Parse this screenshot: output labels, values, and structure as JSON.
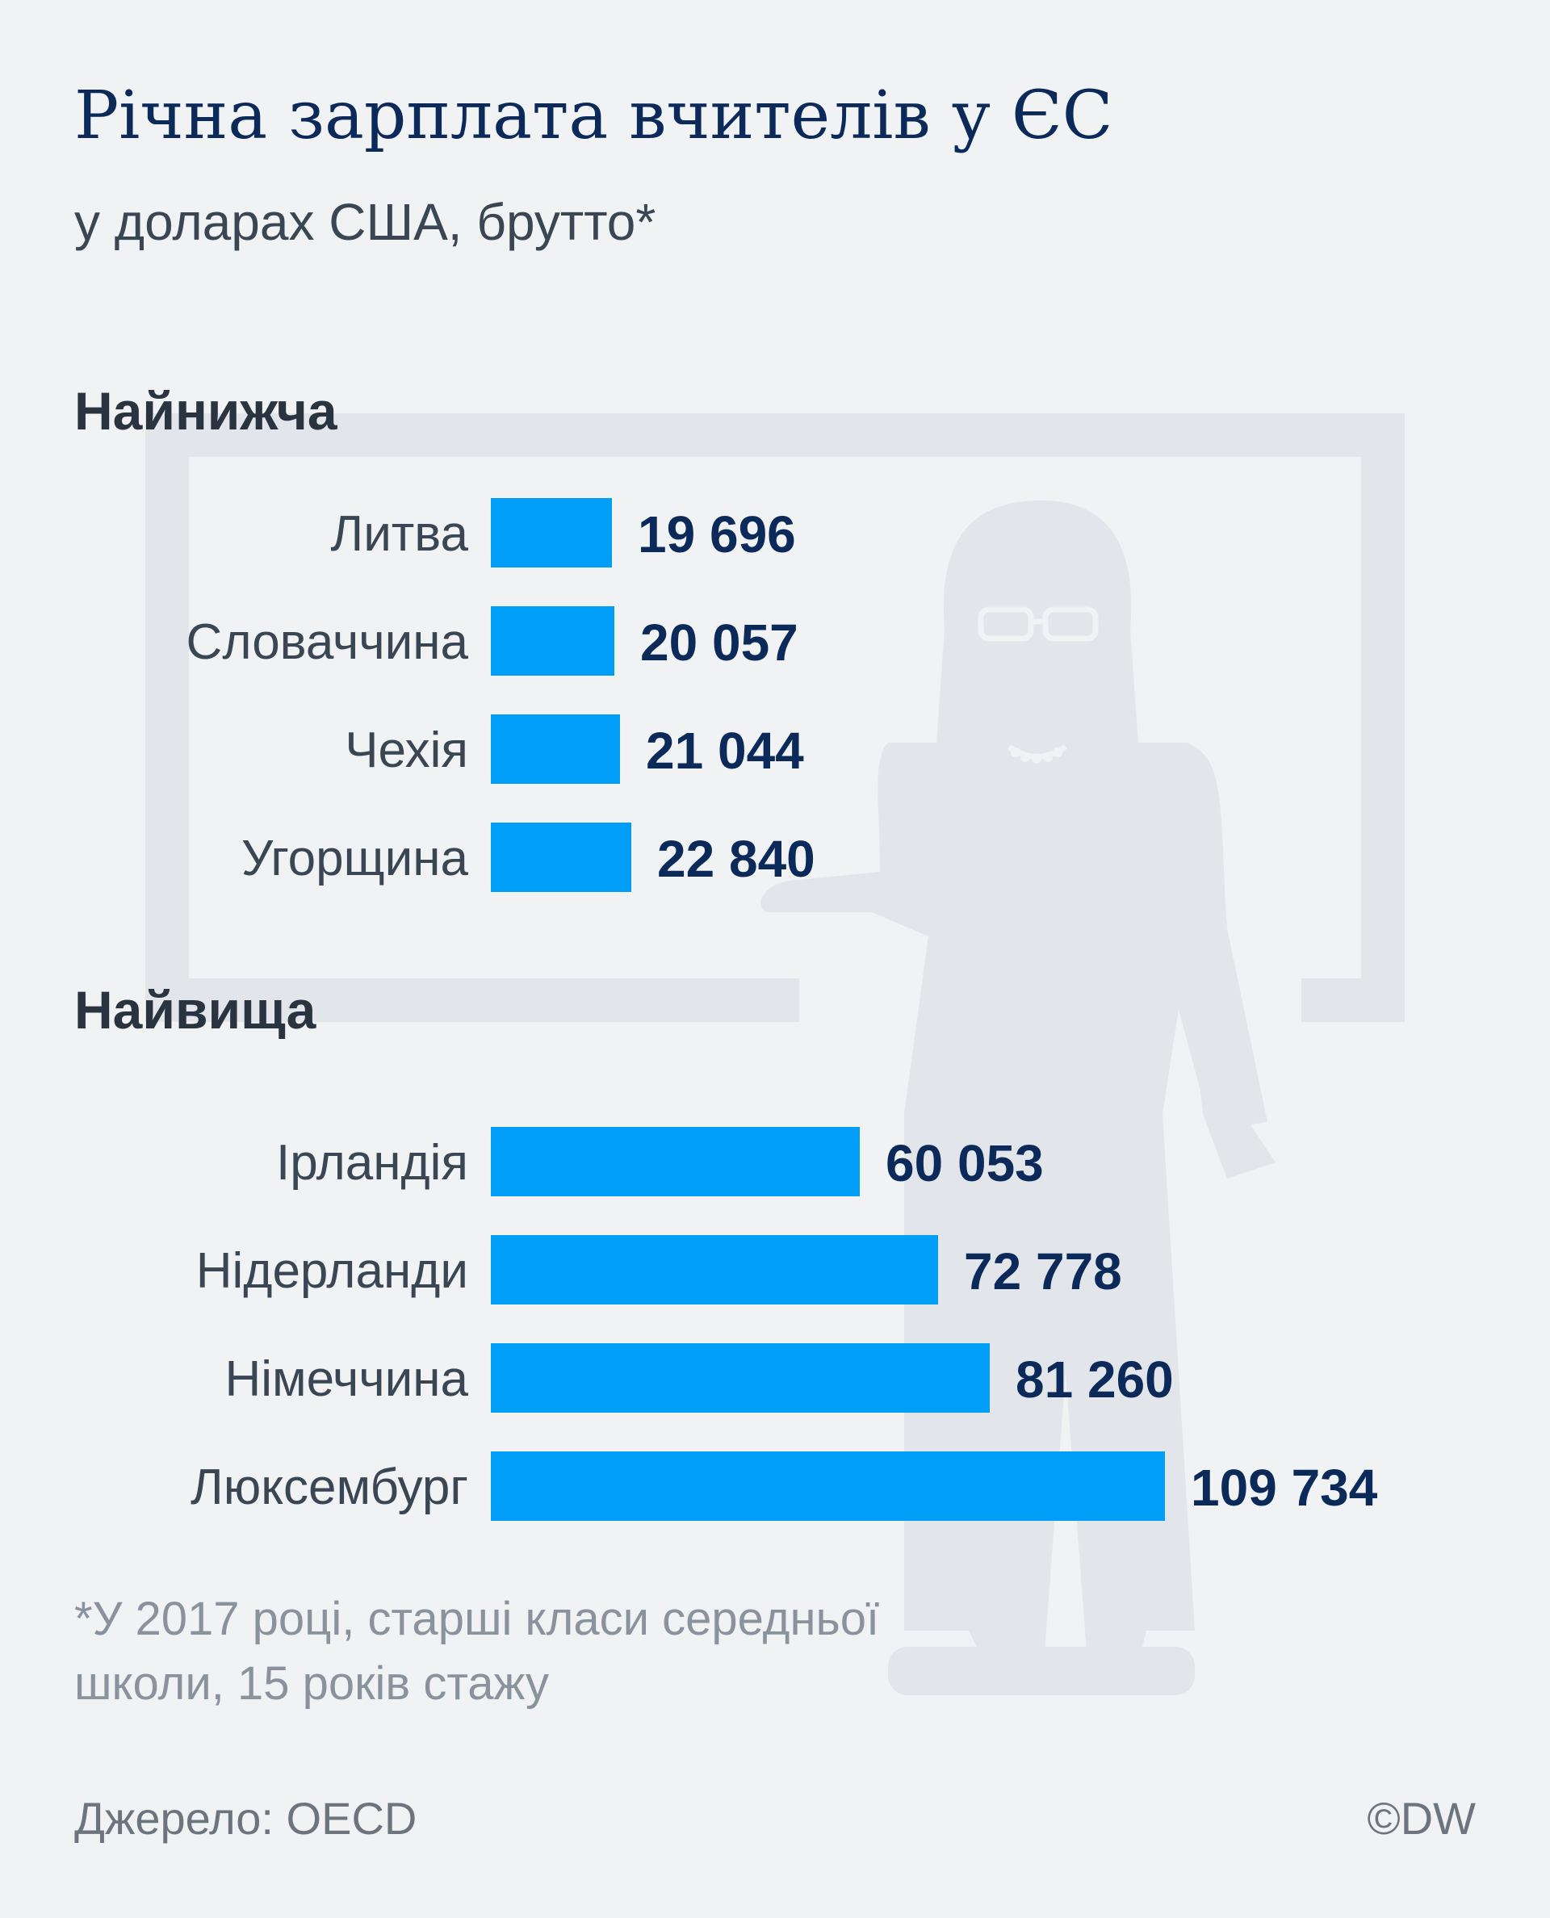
{
  "title": "Річна зарплата вчителів у ЄС",
  "subtitle": "у доларах США, брутто*",
  "footnote_line1": "*У 2017 році, старші класи середньої",
  "footnote_line2": "школи, 15 років стажу",
  "source": "Джерело: OECD",
  "credit": "©DW",
  "colors": {
    "bar": "#009ef7",
    "value_text": "#0b2a59",
    "label_text": "#3a4654",
    "heading_text": "#2a3440",
    "background": "#f0f2f4",
    "illustration": "#e2e6ea"
  },
  "chart_data": [
    {
      "type": "bar",
      "orientation": "horizontal",
      "title": "Найнижча",
      "categories": [
        "Литва",
        "Словаччина",
        "Чехія",
        "Угорщина"
      ],
      "values": [
        19696,
        20057,
        21044,
        22840
      ],
      "value_labels": [
        "19 696",
        "20 057",
        "21 044",
        "22 840"
      ],
      "xlim": [
        0,
        109734
      ],
      "grid": false
    },
    {
      "type": "bar",
      "orientation": "horizontal",
      "title": "Найвища",
      "categories": [
        "Ірландія",
        "Нідерланди",
        "Німеччина",
        "Люксембург"
      ],
      "values": [
        60053,
        72778,
        81260,
        109734
      ],
      "value_labels": [
        "60 053",
        "72 778",
        "81 260",
        "109 734"
      ],
      "xlim": [
        0,
        109734
      ],
      "grid": false
    }
  ]
}
